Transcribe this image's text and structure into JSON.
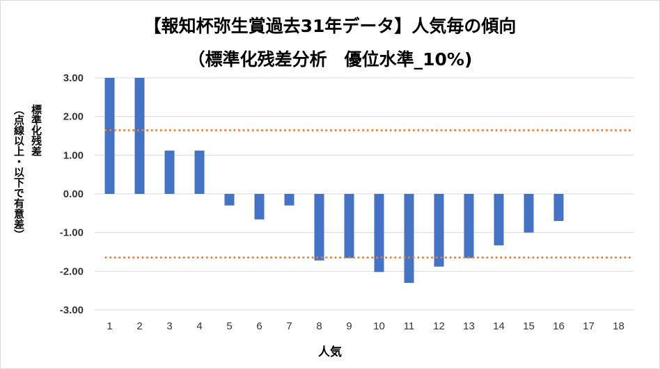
{
  "chart_data": {
    "type": "bar",
    "title": "【報知杯弥生賞過去31年データ】人気毎の傾向",
    "subtitle": "（標準化残差分析　優位水準_10%)",
    "xlabel": "人気",
    "ylabel_lines": [
      "標準化残差",
      "（点線以上・以下で有意差）"
    ],
    "categories": [
      "1",
      "2",
      "3",
      "4",
      "5",
      "6",
      "7",
      "8",
      "9",
      "10",
      "11",
      "12",
      "13",
      "14",
      "15",
      "16",
      "17",
      "18"
    ],
    "values": [
      3.0,
      3.0,
      1.12,
      1.12,
      -0.3,
      -0.66,
      -0.3,
      -1.72,
      -1.66,
      -2.02,
      -2.3,
      -1.88,
      -1.66,
      -1.33,
      -1.0,
      -0.7,
      0,
      0
    ],
    "ylim": [
      -3.0,
      3.0
    ],
    "yticks": [
      "3.00",
      "2.00",
      "1.00",
      "0.00",
      "-1.00",
      "-2.00",
      "-3.00"
    ],
    "reference_lines": [
      1.645,
      -1.645
    ],
    "bar_color": "#4472c4",
    "reference_color": "#ed7d31",
    "grid": true,
    "grid_color": "#d9d9d9"
  }
}
